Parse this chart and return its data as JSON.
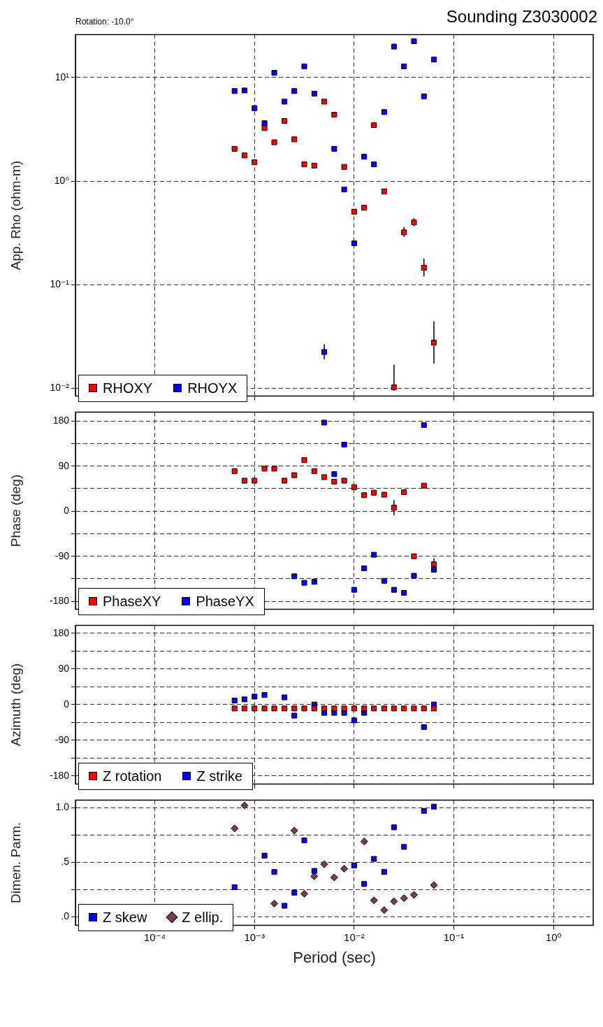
{
  "chart_data": [
    {
      "type": "scatter",
      "title": "Sounding Z3030002",
      "annotations": [
        "Rotation: -10.0°"
      ],
      "ylabel": "App. Rho (ohm-m)",
      "log": "xy",
      "grid": true,
      "legend": "bottom left",
      "tick_labels": "y",
      "x": [
        0.000631,
        0.000794,
        0.001,
        0.00126,
        0.00158,
        0.002,
        0.00251,
        0.00316,
        0.00398,
        0.00501,
        0.00631,
        0.00794,
        0.01,
        0.0126,
        0.0158,
        0.02,
        0.0251,
        0.0316,
        0.0398,
        0.0501,
        0.0631
      ],
      "xlim": [
        1.6e-05,
        2.5
      ],
      "xticks": [
        {
          "value": 0.0001,
          "label": null
        },
        {
          "value": 0.001,
          "label": null
        },
        {
          "value": 0.01,
          "label": null
        },
        {
          "value": 0.1,
          "label": null
        },
        {
          "value": 1,
          "label": null
        }
      ],
      "ylim": [
        0.0084,
        26
      ],
      "yticks": [
        {
          "value": 10,
          "label": "10¹"
        },
        {
          "value": 1,
          "label": "10⁰"
        },
        {
          "value": 0.1,
          "label": "10⁻¹"
        },
        {
          "value": 0.01,
          "label": "10⁻²"
        }
      ],
      "series": [
        {
          "name": "RHOXY",
          "color": "#ff0000",
          "marker": "square",
          "values": [
            2.05,
            1.77,
            1.52,
            3.25,
            2.37,
            3.8,
            2.53,
            1.45,
            1.41,
            5.85,
            4.37,
            1.37,
            0.507,
            0.553,
            3.47,
            0.796,
            0.0102,
            0.32,
            0.4,
            0.146,
            0.0276
          ],
          "errors": [
            null,
            null,
            null,
            null,
            null,
            null,
            null,
            null,
            null,
            null,
            null,
            null,
            null,
            null,
            null,
            null,
            [
              0.0095,
              0.0169
            ],
            [
              0.29,
              0.36
            ],
            [
              0.366,
              0.44
            ],
            [
              0.12,
              0.179
            ],
            [
              0.0173,
              0.0444
            ]
          ]
        },
        {
          "name": "RHOYX",
          "color": "#0000ff",
          "marker": "square",
          "values": [
            7.4,
            7.5,
            5.06,
            3.62,
            11.1,
            5.85,
            7.4,
            12.8,
            6.98,
            0.0224,
            2.05,
            0.83,
            0.251,
            1.72,
            1.45,
            4.64,
            19.9,
            12.8,
            22.4,
            6.58,
            14.9
          ],
          "errors": [
            null,
            null,
            null,
            null,
            null,
            null,
            null,
            null,
            null,
            [
              0.019,
              0.0266
            ],
            null,
            null,
            null,
            null,
            null,
            null,
            null,
            null,
            null,
            null,
            null
          ]
        }
      ]
    },
    {
      "type": "scatter",
      "ylabel": "Phase (deg)",
      "log": "x",
      "grid": true,
      "legend": "bottom left",
      "tick_labels": "y",
      "x": [
        0.000631,
        0.000794,
        0.001,
        0.00126,
        0.00158,
        0.002,
        0.00251,
        0.00316,
        0.00398,
        0.00501,
        0.00631,
        0.00794,
        0.01,
        0.0126,
        0.0158,
        0.02,
        0.0251,
        0.0316,
        0.0398,
        0.0501,
        0.0631
      ],
      "xlim": [
        1.6e-05,
        2.5
      ],
      "xticks": [
        {
          "value": 0.0001,
          "label": null
        },
        {
          "value": 0.001,
          "label": null
        },
        {
          "value": 0.01,
          "label": null
        },
        {
          "value": 0.1,
          "label": null
        },
        {
          "value": 1,
          "label": null
        }
      ],
      "ylim": [
        -196,
        198
      ],
      "yticks": [
        180,
        {
          "value": 135,
          "label": null
        },
        90,
        {
          "value": 45,
          "label": null
        },
        0,
        {
          "value": -45,
          "label": null
        },
        -90,
        {
          "value": -135,
          "label": null
        },
        -180
      ],
      "series": [
        {
          "name": "PhaseXY",
          "color": "#ff0000",
          "marker": "square",
          "values": [
            80,
            61,
            61,
            85,
            85,
            61,
            72,
            102,
            80,
            68,
            59,
            61,
            48,
            32,
            37,
            33,
            7,
            38,
            -90,
            51,
            -106
          ],
          "errors": [
            null,
            null,
            null,
            null,
            null,
            null,
            null,
            null,
            null,
            null,
            null,
            null,
            null,
            null,
            null,
            null,
            15,
            null,
            null,
            null,
            12
          ]
        },
        {
          "name": "PhaseYX",
          "color": "#0000ff",
          "marker": "square",
          "values": [
            null,
            null,
            null,
            null,
            null,
            null,
            -130,
            -143,
            -141,
            177,
            74,
            133,
            -157,
            -114,
            -87,
            -139,
            -157,
            -163,
            -129,
            172,
            -117
          ]
        }
      ]
    },
    {
      "type": "scatter",
      "ylabel": "Azimuth (deg)",
      "log": "x",
      "grid": true,
      "legend": "bottom left",
      "tick_labels": "y",
      "x": [
        0.000631,
        0.000794,
        0.001,
        0.00126,
        0.00158,
        0.002,
        0.00251,
        0.00316,
        0.00398,
        0.00501,
        0.00631,
        0.00794,
        0.01,
        0.0126,
        0.0158,
        0.02,
        0.0251,
        0.0316,
        0.0398,
        0.0501,
        0.0631
      ],
      "xlim": [
        1.6e-05,
        2.5
      ],
      "xticks": [
        {
          "value": 0.0001,
          "label": null
        },
        {
          "value": 0.001,
          "label": null
        },
        {
          "value": 0.01,
          "label": null
        },
        {
          "value": 0.1,
          "label": null
        },
        {
          "value": 1,
          "label": null
        }
      ],
      "ylim": [
        -201,
        200
      ],
      "yticks": [
        180,
        {
          "value": 135,
          "label": null
        },
        90,
        {
          "value": 45,
          "label": null
        },
        0,
        {
          "value": -45,
          "label": null
        },
        -90,
        {
          "value": -135,
          "label": null
        },
        -180
      ],
      "series": [
        {
          "name": "Z rotation",
          "color": "#ff0000",
          "marker": "square",
          "values": [
            -10,
            -10,
            -10,
            -10,
            -10,
            -10,
            -10,
            -10,
            -10,
            -10,
            -10,
            -10,
            -10,
            -10,
            -10,
            -10,
            -10,
            -10,
            -10,
            -10,
            -10
          ]
        },
        {
          "name": "Z strike",
          "color": "#0000ff",
          "marker": "square",
          "values": [
            10,
            13,
            20,
            24,
            null,
            18,
            -28,
            null,
            0,
            -21,
            -21,
            -21,
            -40,
            -21,
            null,
            null,
            null,
            null,
            null,
            -57,
            0
          ]
        }
      ]
    },
    {
      "type": "scatter",
      "ylabel": "Dimen. Parm.",
      "xlabel": "Period (sec)",
      "log": "x",
      "grid": true,
      "legend": "bottom left",
      "x": [
        0.000631,
        0.000794,
        0.001,
        0.00126,
        0.00158,
        0.002,
        0.00251,
        0.00316,
        0.00398,
        0.00501,
        0.00631,
        0.00794,
        0.01,
        0.0126,
        0.0158,
        0.02,
        0.0251,
        0.0316,
        0.0398,
        0.0501,
        0.0631
      ],
      "xlim": [
        1.6e-05,
        2.5
      ],
      "xticks": [
        {
          "value": 0.0001,
          "label": "10⁻⁴"
        },
        {
          "value": 0.001,
          "label": "10⁻³"
        },
        {
          "value": 0.01,
          "label": "10⁻²"
        },
        {
          "value": 0.1,
          "label": "10⁻¹"
        },
        {
          "value": 1,
          "label": "10⁰"
        }
      ],
      "ylim": [
        -0.08,
        1.07
      ],
      "yticks": [
        {
          "value": 1,
          "label": "1.0"
        },
        {
          "value": 0.75,
          "label": null
        },
        {
          "value": 0.5,
          "label": ".5"
        },
        {
          "value": 0.25,
          "label": null
        },
        {
          "value": 0,
          "label": ".0"
        }
      ],
      "series": [
        {
          "name": "Z skew",
          "color": "#0000ff",
          "marker": "square",
          "values": [
            0.27,
            null,
            null,
            0.56,
            0.41,
            0.1,
            0.22,
            0.7,
            0.42,
            null,
            null,
            null,
            0.47,
            0.3,
            0.53,
            0.41,
            0.82,
            0.64,
            null,
            0.97,
            1.01
          ]
        },
        {
          "name": "Z ellip.",
          "color": "#7b3b55",
          "marker": "diamond",
          "values": [
            0.81,
            1.02,
            null,
            null,
            0.12,
            null,
            0.79,
            0.21,
            0.37,
            0.48,
            0.36,
            0.44,
            null,
            0.69,
            0.15,
            0.06,
            0.14,
            0.17,
            0.2,
            null,
            0.29
          ]
        }
      ]
    }
  ]
}
